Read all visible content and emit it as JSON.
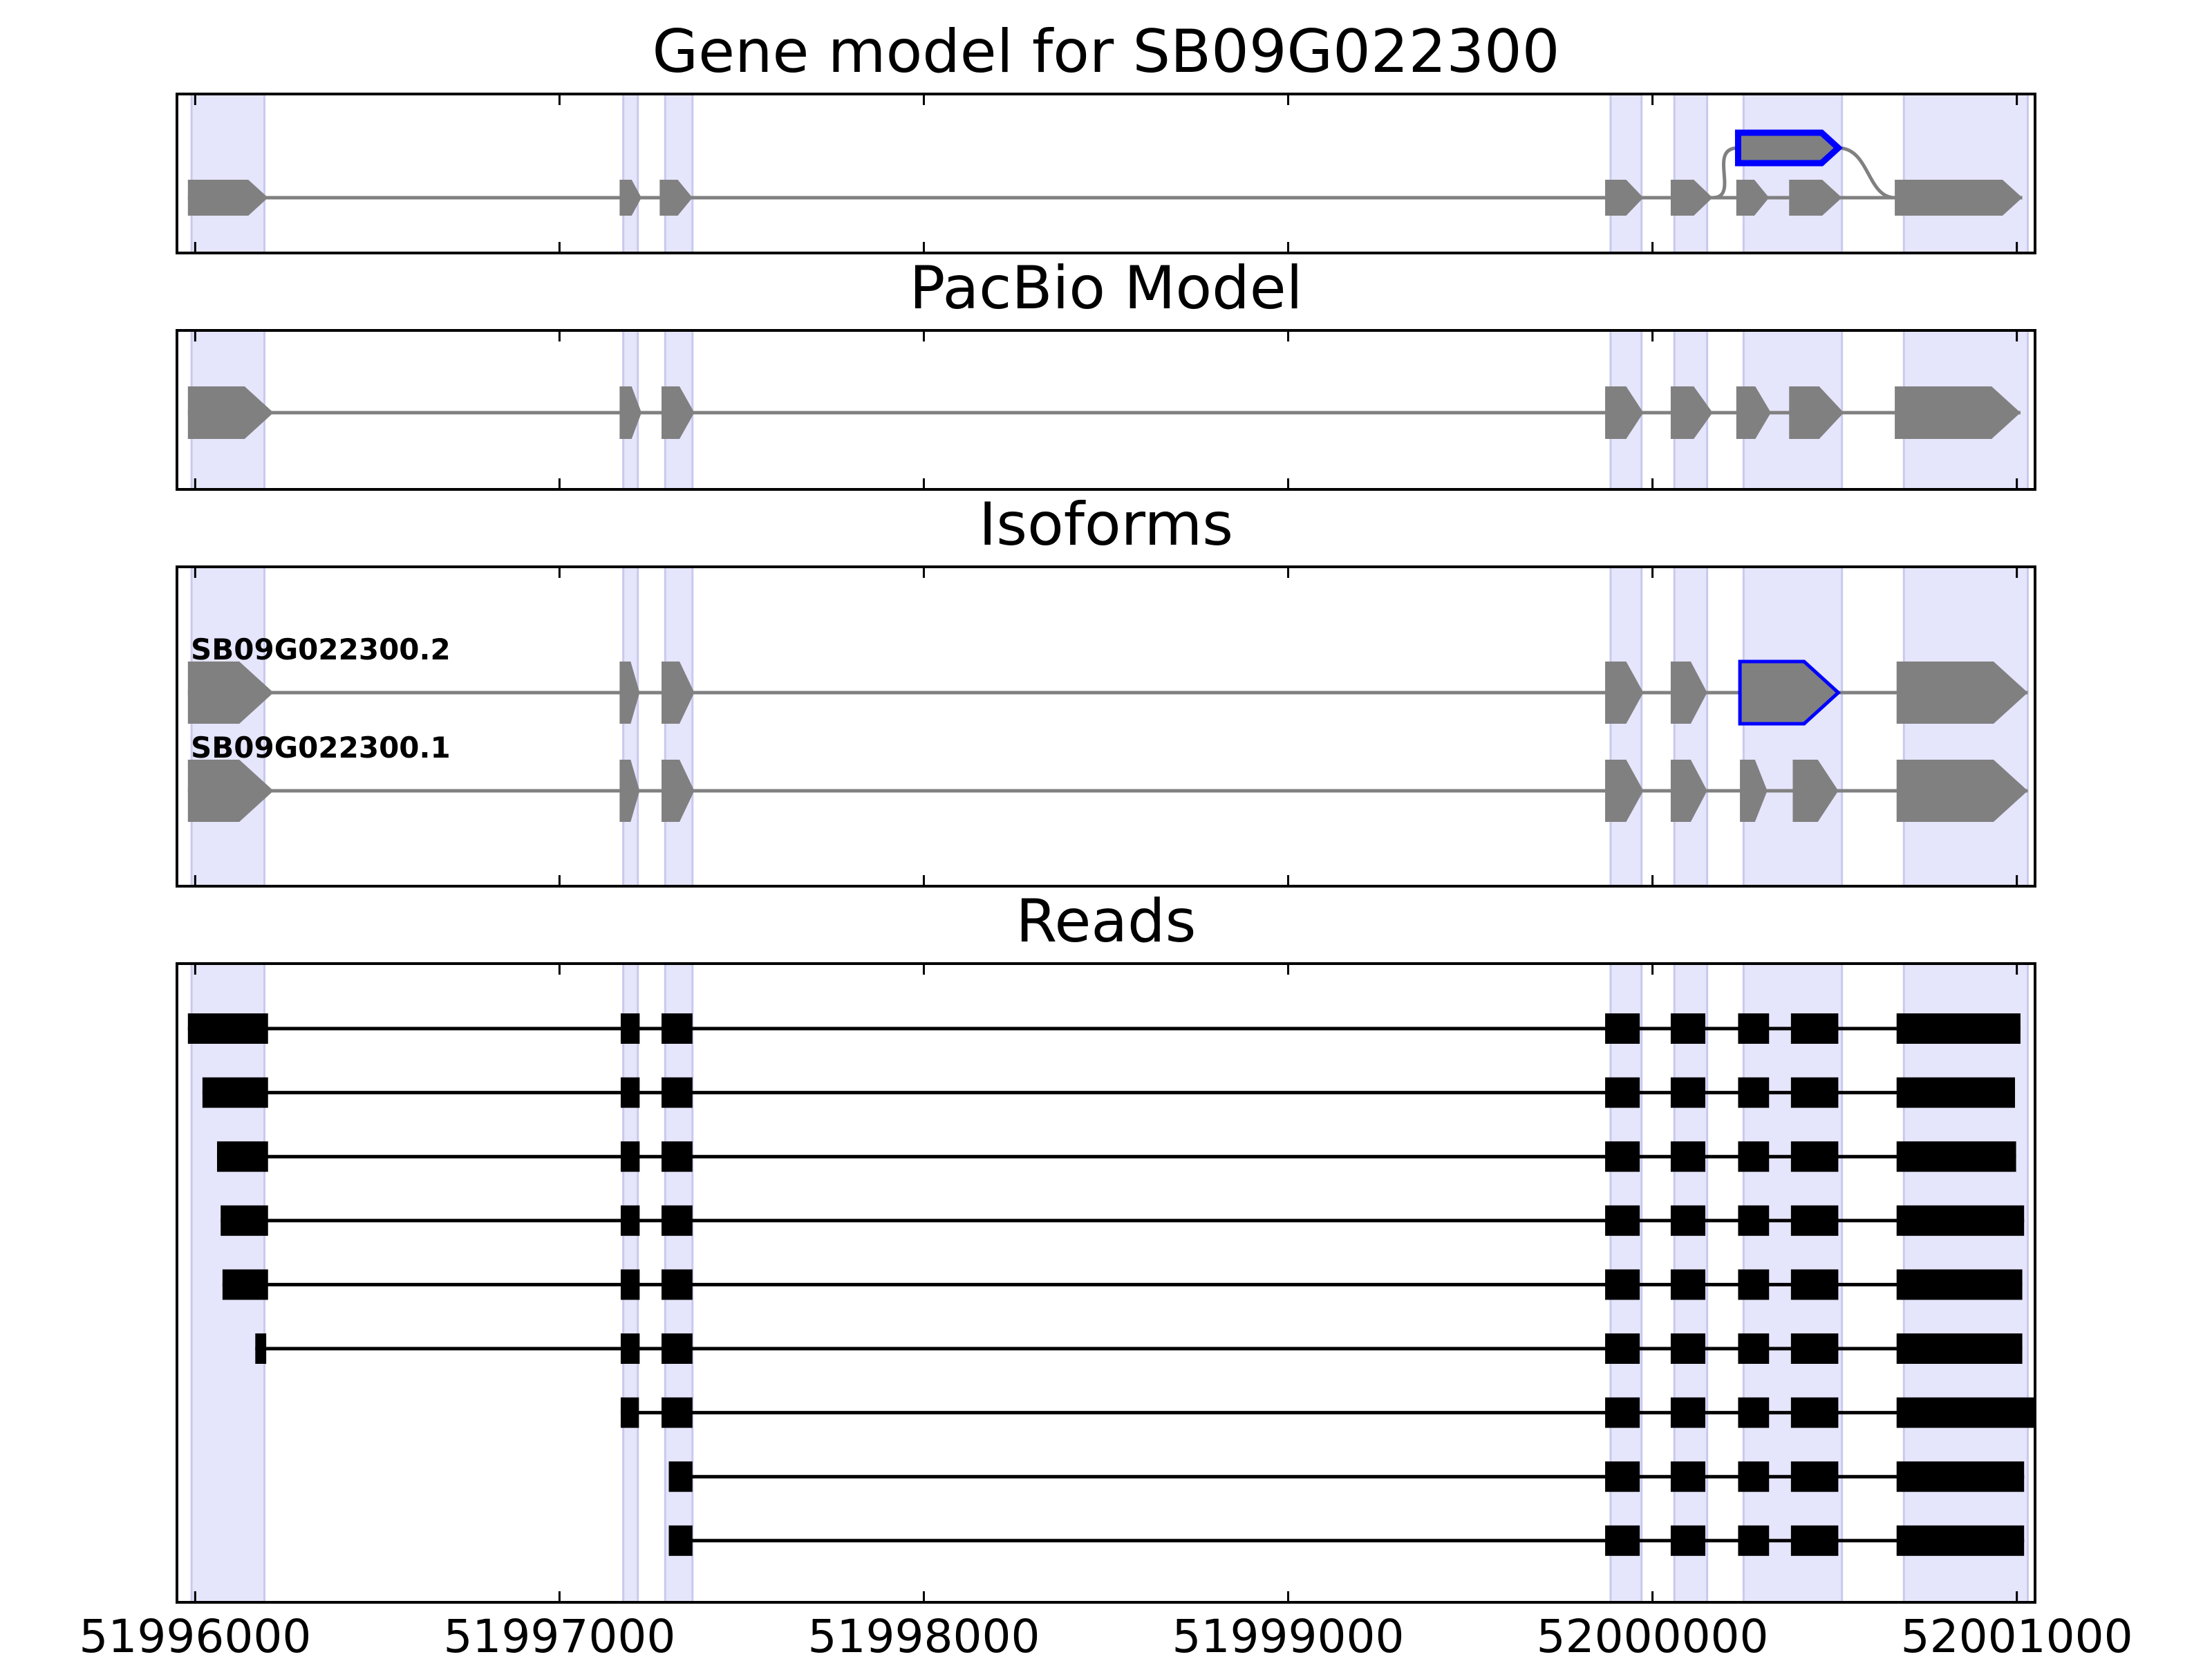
{
  "chart_data": {
    "type": "gene-structure",
    "title": "Gene model for SB09G022300",
    "x_axis": {
      "range": [
        51995950,
        52001050
      ],
      "ticks": [
        51996000,
        51997000,
        51998000,
        51999000,
        52000000,
        52001000
      ],
      "tick_labels": [
        "51996000",
        "51997000",
        "51998000",
        "51999000",
        "52000000",
        "52001000"
      ]
    },
    "highlight_regions": [
      [
        51995990,
        51996190
      ],
      [
        51997175,
        51997215
      ],
      [
        51997290,
        51997365
      ],
      [
        51999885,
        51999970
      ],
      [
        52000060,
        52000150
      ],
      [
        52000250,
        52000520
      ],
      [
        52000690,
        52001030
      ]
    ],
    "colors": {
      "highlight": "#e5e5fb",
      "highlight_edge": "#c9c9ef",
      "feature": "#808080",
      "selected": "#0000ff",
      "read": "#000000"
    },
    "panels": [
      {
        "title": "Gene model for SB09G022300",
        "kind": "splice-graph",
        "main_exons": [
          [
            51995980,
            51996200
          ],
          [
            51997165,
            51997225
          ],
          [
            51997275,
            51997365
          ],
          [
            51999870,
            51999975
          ],
          [
            52000050,
            52000165
          ],
          [
            52000230,
            52000320
          ],
          [
            52000375,
            52000520
          ],
          [
            52000665,
            52001015
          ]
        ],
        "alternative_exon": {
          "range": [
            52000235,
            52000510
          ],
          "selected": true
        }
      },
      {
        "title": "PacBio Model",
        "kind": "model",
        "exons": [
          [
            51995980,
            51996215
          ],
          [
            51997165,
            51997225
          ],
          [
            51997280,
            51997370
          ],
          [
            51999870,
            51999975
          ],
          [
            52000050,
            52000165
          ],
          [
            52000230,
            52000325
          ],
          [
            52000375,
            52000525
          ],
          [
            52000665,
            52001010
          ]
        ]
      },
      {
        "title": "Isoforms",
        "kind": "isoforms",
        "isoforms": [
          {
            "name": "SB09G022300.2",
            "exons": [
              [
                51995980,
                51996215
              ],
              [
                51997165,
                51997220
              ],
              [
                51997280,
                51997370
              ],
              [
                51999870,
                51999975
              ],
              [
                52000050,
                52000150
              ],
              [
                52000240,
                52000510
              ],
              [
                52000670,
                52001030
              ]
            ],
            "selected_exon": 5
          },
          {
            "name": "SB09G022300.1",
            "exons": [
              [
                51995980,
                51996215
              ],
              [
                51997165,
                51997220
              ],
              [
                51997280,
                51997370
              ],
              [
                51999870,
                51999975
              ],
              [
                52000050,
                52000150
              ],
              [
                52000240,
                52000315
              ],
              [
                52000385,
                52000510
              ],
              [
                52000670,
                52001030
              ]
            ]
          }
        ]
      },
      {
        "title": "Reads",
        "kind": "reads",
        "reads": [
          [
            [
              51995980,
              51996200
            ],
            [
              51997168,
              51997220
            ],
            [
              51997280,
              51997365
            ],
            [
              51999870,
              51999965
            ],
            [
              52000050,
              52000145
            ],
            [
              52000235,
              52000320
            ],
            [
              52000380,
              52000510
            ],
            [
              52000670,
              52001010
            ]
          ],
          [
            [
              51996020,
              51996200
            ],
            [
              51997168,
              51997220
            ],
            [
              51997280,
              51997365
            ],
            [
              51999870,
              51999965
            ],
            [
              52000050,
              52000145
            ],
            [
              52000235,
              52000320
            ],
            [
              52000380,
              52000510
            ],
            [
              52000670,
              52000995
            ]
          ],
          [
            [
              51996060,
              51996200
            ],
            [
              51997168,
              51997220
            ],
            [
              51997280,
              51997365
            ],
            [
              51999870,
              51999965
            ],
            [
              52000050,
              52000145
            ],
            [
              52000235,
              52000320
            ],
            [
              52000380,
              52000510
            ],
            [
              52000670,
              52000998
            ]
          ],
          [
            [
              51996070,
              51996200
            ],
            [
              51997168,
              51997220
            ],
            [
              51997280,
              51997365
            ],
            [
              51999870,
              51999965
            ],
            [
              52000050,
              52000145
            ],
            [
              52000235,
              52000320
            ],
            [
              52000380,
              52000510
            ],
            [
              52000670,
              52001020
            ]
          ],
          [
            [
              51996075,
              51996200
            ],
            [
              51997168,
              51997220
            ],
            [
              51997280,
              51997365
            ],
            [
              51999870,
              51999965
            ],
            [
              52000050,
              52000145
            ],
            [
              52000235,
              52000320
            ],
            [
              52000380,
              52000510
            ],
            [
              52000670,
              52001015
            ]
          ],
          [
            [
              51996165,
              51996195
            ],
            [
              51997168,
              51997220
            ],
            [
              51997280,
              51997365
            ],
            [
              51999870,
              51999965
            ],
            [
              52000050,
              52000145
            ],
            [
              52000235,
              52000320
            ],
            [
              52000380,
              52000510
            ],
            [
              52000670,
              52001015
            ]
          ],
          [
            [
              51997168,
              51997218
            ],
            [
              51997280,
              51997365
            ],
            [
              51999870,
              51999965
            ],
            [
              52000050,
              52000145
            ],
            [
              52000235,
              52000320
            ],
            [
              52000380,
              52000510
            ],
            [
              52000670,
              52001050
            ]
          ],
          [
            [
              51997300,
              51997365
            ],
            [
              51999870,
              51999965
            ],
            [
              52000050,
              52000145
            ],
            [
              52000235,
              52000320
            ],
            [
              52000380,
              52000510
            ],
            [
              52000670,
              52001020
            ]
          ],
          [
            [
              51997300,
              51997365
            ],
            [
              51999870,
              51999965
            ],
            [
              52000050,
              52000145
            ],
            [
              52000235,
              52000320
            ],
            [
              52000380,
              52000510
            ],
            [
              52000670,
              52001020
            ]
          ]
        ]
      }
    ]
  }
}
